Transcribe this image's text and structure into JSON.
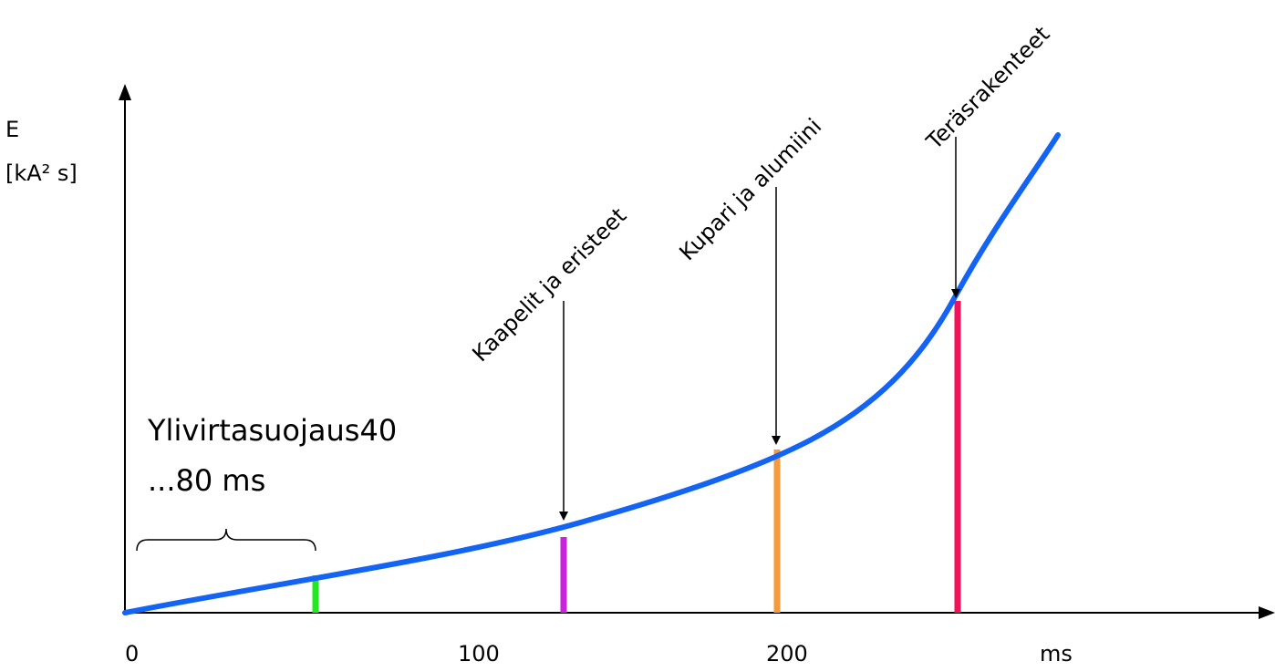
{
  "y_axis": {
    "label_line1": "E",
    "label_line2": "[kA² s]"
  },
  "x_axis": {
    "ticks": [
      "0",
      "100",
      "200"
    ],
    "unit": "ms"
  },
  "overcurrent": {
    "line1": "Ylivirtasuojaus40",
    "line2": "...80 ms"
  },
  "annotations": [
    "Kaapelit ja eristeet",
    "Kupari ja alumiini",
    "Teräsrakenteet"
  ],
  "colors": {
    "curve": "#1464f4",
    "green": "#22e822",
    "magenta": "#cc22dd",
    "orange": "#f59a3c",
    "red": "#f2125a"
  }
}
